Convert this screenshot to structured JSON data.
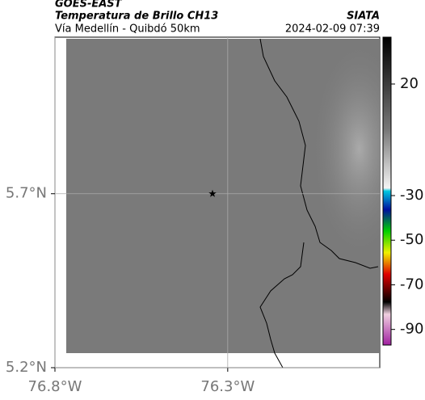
{
  "chart_data": {
    "type": "map",
    "title": "GOES-EAST",
    "subtitle": "Temperatura de Brillo CH13",
    "caption": "Vía Medellín - Quibdó 50km",
    "source": "SIATA",
    "timestamp": "2024-02-09 07:39",
    "xlim": [
      -76.8,
      -75.86
    ],
    "ylim": [
      5.2,
      6.15
    ],
    "xticks": [
      {
        "value": -76.8,
        "label": "76.8°W"
      },
      {
        "value": -76.3,
        "label": "76.3°W"
      }
    ],
    "yticks": [
      {
        "value": 5.7,
        "label": "5.7°N"
      },
      {
        "value": 5.2,
        "label": "5.2°N"
      }
    ],
    "grid": true,
    "marker": {
      "x": -76.344,
      "y": 5.7
    },
    "colorbar": {
      "lim": [
        41,
        -97
      ],
      "ticks": [
        20,
        -30,
        -50,
        -70,
        -90
      ]
    }
  }
}
